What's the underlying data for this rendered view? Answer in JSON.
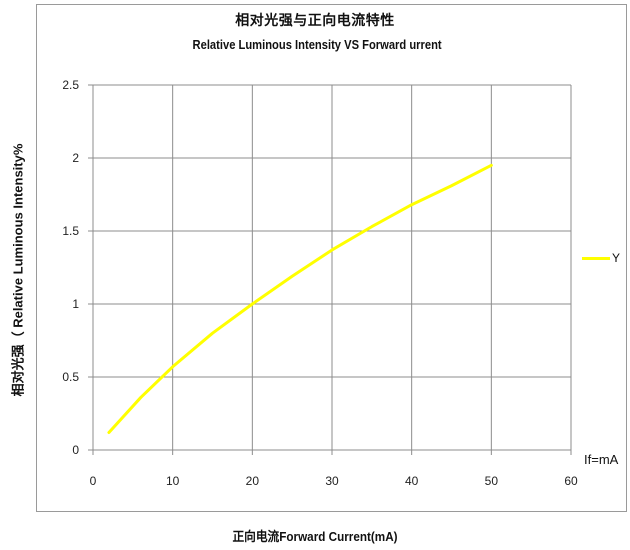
{
  "chart_data": {
    "type": "line",
    "title": "相对光强与正向电流特性",
    "subtitle": "Relative Luminous Intensity VS Forward  urrent",
    "xlabel": "正向电流Forward Current(mA)",
    "ylabel": "相对光强（ Relative Luminous Intensity%",
    "x_unit_label": "If=mA",
    "xlim": [
      0,
      60
    ],
    "ylim": [
      0,
      2.5
    ],
    "xticks": [
      "0",
      "10",
      "20",
      "30",
      "40",
      "50",
      "60"
    ],
    "yticks": [
      "0",
      "0.5",
      "1",
      "1.5",
      "2",
      "2.5"
    ],
    "grid": true,
    "legend_position": "right",
    "series": [
      {
        "name": "Y",
        "color": "#ffff00",
        "x": [
          2,
          6,
          10,
          15,
          20,
          25,
          30,
          35,
          40,
          45,
          50
        ],
        "y": [
          0.12,
          0.36,
          0.57,
          0.8,
          1.0,
          1.19,
          1.37,
          1.53,
          1.68,
          1.81,
          1.95
        ]
      }
    ]
  }
}
